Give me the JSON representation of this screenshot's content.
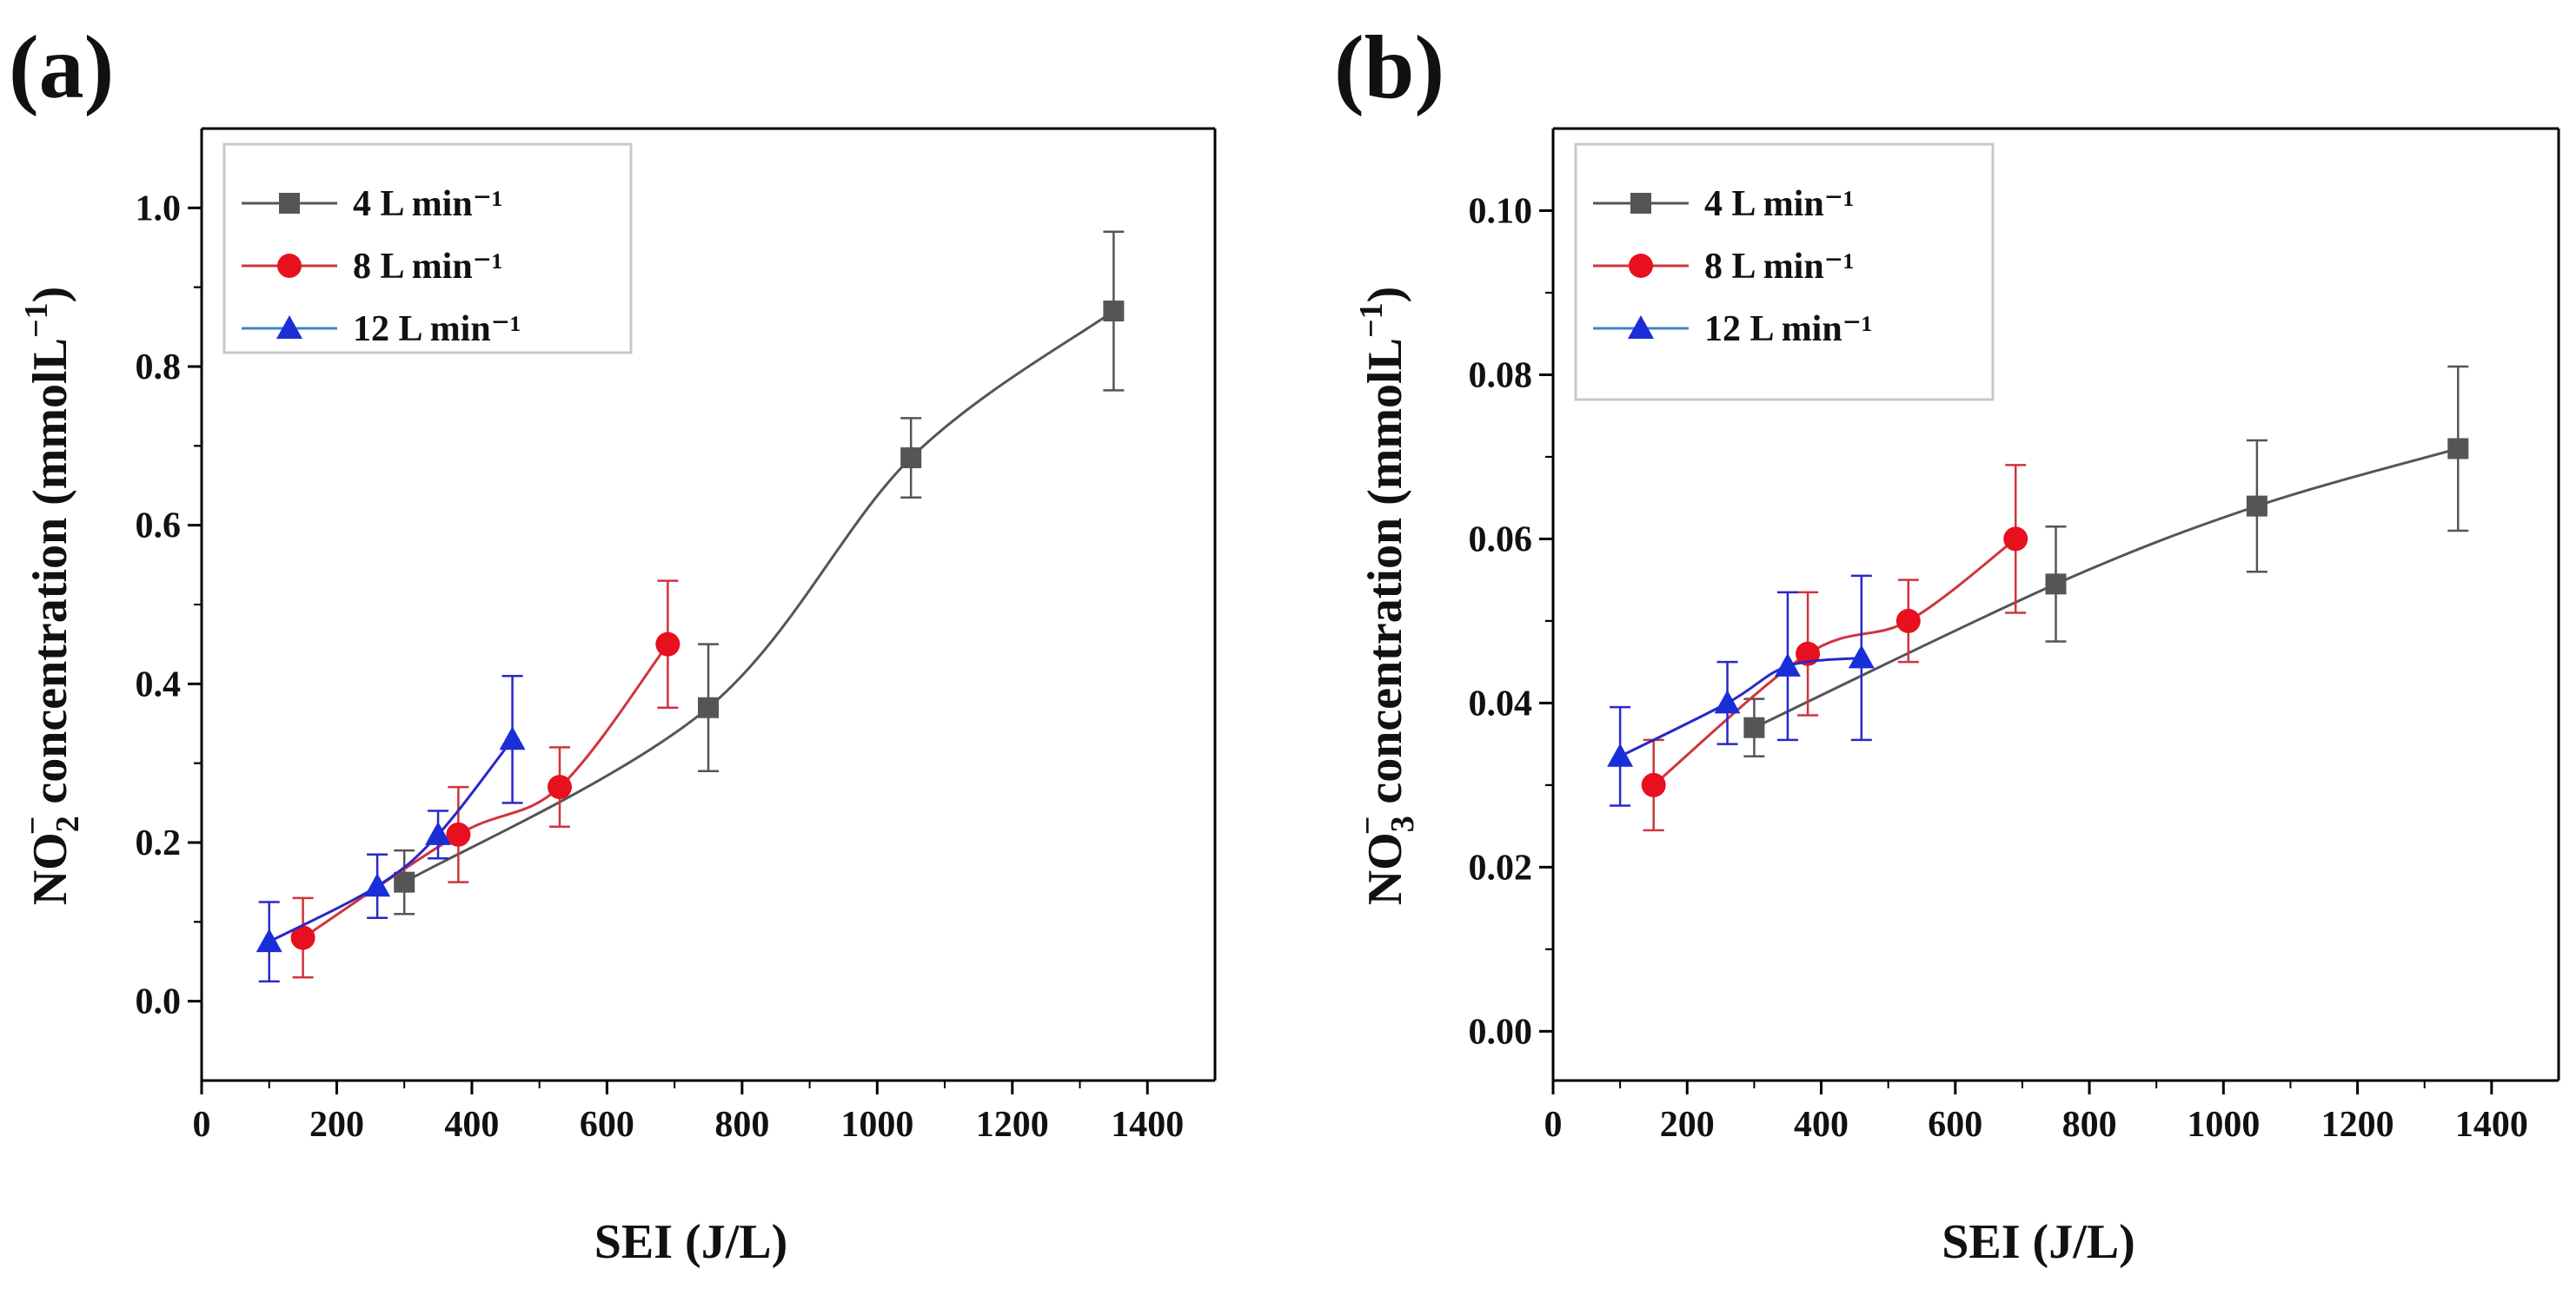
{
  "colors": {
    "series_4": "#555555",
    "series_8": "#e8101e",
    "series_12": "#1a2ed8",
    "series_12_legend_line": "#3f86c8",
    "series_8_line": "#d0343c",
    "series_12_line": "#2828c8",
    "axis": "#000000",
    "legend_border": "#c8c8c8"
  },
  "chart_data": [
    {
      "type": "line",
      "panel_label": "(a)",
      "title": "",
      "xlabel": "SEI (J/L)",
      "ylabel": {
        "prefix": "NO",
        "sub": "2",
        "sup": "−",
        "suffix": " concentration (mmolL",
        "suffix_sup": "−1",
        "close": ")"
      },
      "xlim": [
        0,
        1500
      ],
      "ylim": [
        -0.1,
        1.1
      ],
      "xticks": [
        0,
        200,
        400,
        600,
        800,
        1000,
        1200,
        1400
      ],
      "yticks": [
        0.0,
        0.2,
        0.4,
        0.6,
        0.8,
        1.0
      ],
      "ytick_labels": [
        "0.0",
        "0.2",
        "0.4",
        "0.6",
        "0.8",
        "1.0"
      ],
      "legend_position": "top-left",
      "series": [
        {
          "name": "4 L min⁻¹",
          "marker": "square",
          "color_key": "series_4",
          "line_key": "series_4",
          "x": [
            300,
            750,
            1050,
            1350
          ],
          "y": [
            0.15,
            0.37,
            0.685,
            0.87
          ],
          "err": [
            0.04,
            0.08,
            0.05,
            0.1
          ]
        },
        {
          "name": "8 L min⁻¹",
          "marker": "circle",
          "color_key": "series_8",
          "line_key": "series_8_line",
          "x": [
            150,
            380,
            530,
            690
          ],
          "y": [
            0.08,
            0.21,
            0.27,
            0.45
          ],
          "err": [
            0.05,
            0.06,
            0.05,
            0.08
          ]
        },
        {
          "name": "12 L min⁻¹",
          "marker": "triangle",
          "color_key": "series_12",
          "line_key": "series_12_line",
          "x": [
            100,
            260,
            350,
            460
          ],
          "y": [
            0.075,
            0.145,
            0.21,
            0.33
          ],
          "err": [
            0.05,
            0.04,
            0.03,
            0.08
          ]
        }
      ]
    },
    {
      "type": "line",
      "panel_label": "(b)",
      "title": "",
      "xlabel": "SEI (J/L)",
      "ylabel": {
        "prefix": "NO",
        "sub": "3",
        "sup": "−",
        "suffix": " concentration (mmolL",
        "suffix_sup": "−1",
        "close": ")"
      },
      "xlim": [
        0,
        1500
      ],
      "ylim": [
        -0.006,
        0.11
      ],
      "xticks": [
        0,
        200,
        400,
        600,
        800,
        1000,
        1200,
        1400
      ],
      "yticks": [
        0.0,
        0.02,
        0.04,
        0.06,
        0.08,
        0.1
      ],
      "ytick_labels": [
        "0.00",
        "0.02",
        "0.04",
        "0.06",
        "0.08",
        "0.10"
      ],
      "legend_position": "top-left",
      "series": [
        {
          "name": "4 L min⁻¹",
          "marker": "square",
          "color_key": "series_4",
          "line_key": "series_4",
          "x": [
            300,
            750,
            1050,
            1350
          ],
          "y": [
            0.037,
            0.0545,
            0.064,
            0.071
          ],
          "err": [
            0.0035,
            0.007,
            0.008,
            0.01
          ]
        },
        {
          "name": "8 L min⁻¹",
          "marker": "circle",
          "color_key": "series_8",
          "line_key": "series_8_line",
          "x": [
            150,
            380,
            530,
            690
          ],
          "y": [
            0.03,
            0.046,
            0.05,
            0.06
          ],
          "err": [
            0.0055,
            0.0075,
            0.005,
            0.009
          ]
        },
        {
          "name": "12 L min⁻¹",
          "marker": "triangle",
          "color_key": "series_12",
          "line_key": "series_12_line",
          "x": [
            100,
            260,
            350,
            460
          ],
          "y": [
            0.0335,
            0.04,
            0.0445,
            0.0455
          ],
          "err": [
            0.006,
            0.005,
            0.009,
            0.01
          ]
        }
      ]
    }
  ]
}
